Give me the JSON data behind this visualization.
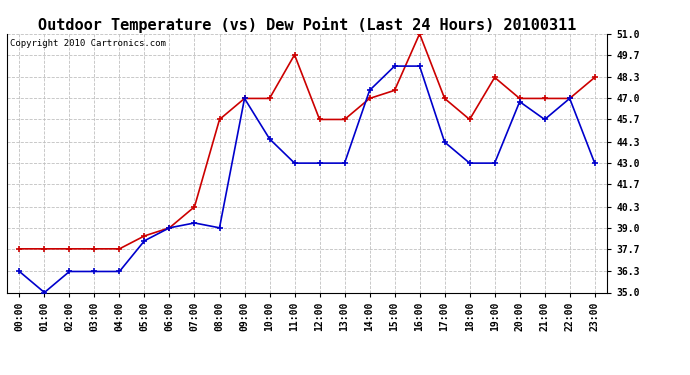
{
  "title": "Outdoor Temperature (vs) Dew Point (Last 24 Hours) 20100311",
  "copyright": "Copyright 2010 Cartronics.com",
  "x_labels": [
    "00:00",
    "01:00",
    "02:00",
    "03:00",
    "04:00",
    "05:00",
    "06:00",
    "07:00",
    "08:00",
    "09:00",
    "10:00",
    "11:00",
    "12:00",
    "13:00",
    "14:00",
    "15:00",
    "16:00",
    "17:00",
    "18:00",
    "19:00",
    "20:00",
    "21:00",
    "22:00",
    "23:00"
  ],
  "temp_data": [
    37.7,
    37.7,
    37.7,
    37.7,
    37.7,
    38.5,
    39.0,
    40.3,
    45.7,
    47.0,
    47.0,
    49.7,
    45.7,
    45.7,
    47.0,
    47.5,
    51.0,
    47.0,
    45.7,
    48.3,
    47.0,
    47.0,
    47.0,
    48.3
  ],
  "dew_data": [
    36.3,
    35.0,
    36.3,
    36.3,
    36.3,
    38.2,
    39.0,
    39.3,
    39.0,
    47.0,
    44.5,
    43.0,
    43.0,
    43.0,
    47.5,
    49.0,
    49.0,
    44.3,
    43.0,
    43.0,
    46.8,
    45.7,
    47.0,
    43.0
  ],
  "temp_color": "#cc0000",
  "dew_color": "#0000cc",
  "ylim_min": 35.0,
  "ylim_max": 51.0,
  "y_ticks": [
    35.0,
    36.3,
    37.7,
    39.0,
    40.3,
    41.7,
    43.0,
    44.3,
    45.7,
    47.0,
    48.3,
    49.7,
    51.0
  ],
  "bg_color": "#ffffff",
  "grid_color": "#c0c0c0",
  "title_fontsize": 11,
  "tick_fontsize": 7,
  "copyright_fontsize": 6.5
}
